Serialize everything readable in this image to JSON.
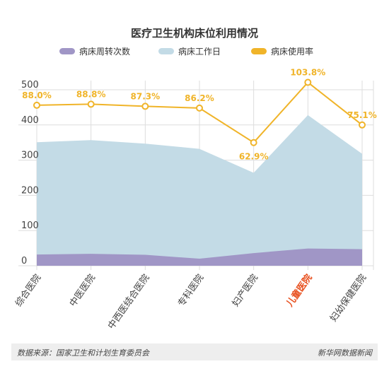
{
  "chart_data": {
    "type": "area",
    "title": "医疗卫生机构床位利用情况",
    "categories": [
      "综合医院",
      "中医医院",
      "中西医结合医院",
      "专科医院",
      "妇产医院",
      "儿童医院",
      "妇幼保健医院"
    ],
    "highlight_category": "儿童医院",
    "ylim": [
      0,
      500
    ],
    "yticks": [
      0,
      100,
      200,
      300,
      400,
      500
    ],
    "grid": true,
    "legend_position": "top",
    "series": [
      {
        "name": "病床周转次数",
        "type": "area",
        "color": "#a096c6",
        "values": [
          32,
          34,
          31,
          20,
          36,
          49,
          47
        ]
      },
      {
        "name": "病床工作日",
        "type": "area",
        "color": "#c3dbe6",
        "values": [
          351,
          357,
          347,
          332,
          264,
          428,
          318
        ]
      },
      {
        "name": "病床使用率",
        "type": "line",
        "color": "#f0b429",
        "values": [
          456,
          459,
          453,
          448,
          350,
          521,
          400
        ],
        "labels": [
          "88.0%",
          "88.8%",
          "87.3%",
          "86.2%",
          "62.9%",
          "103.8%",
          "75.1%"
        ]
      }
    ]
  },
  "colors": {
    "highlight": "#e8501f",
    "axis_text": "#444444",
    "grid": "#dddddd"
  },
  "footer": {
    "source": "数据来源：国家卫生和计划生育委员会",
    "brand": "新华网数据新闻"
  }
}
